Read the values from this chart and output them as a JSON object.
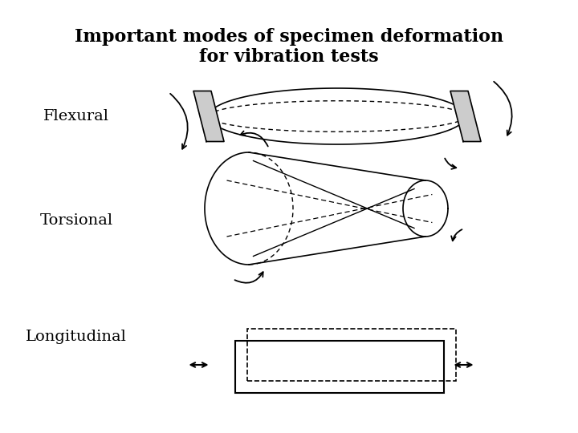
{
  "title": "Important modes of specimen deformation\nfor vibration tests",
  "title_fontsize": 16,
  "label_fontsize": 14,
  "flexural_label": "Flexural",
  "torsional_label": "Torsional",
  "longitudinal_label": "Longitudinal",
  "bg_color": "#ffffff",
  "line_color": "#000000"
}
